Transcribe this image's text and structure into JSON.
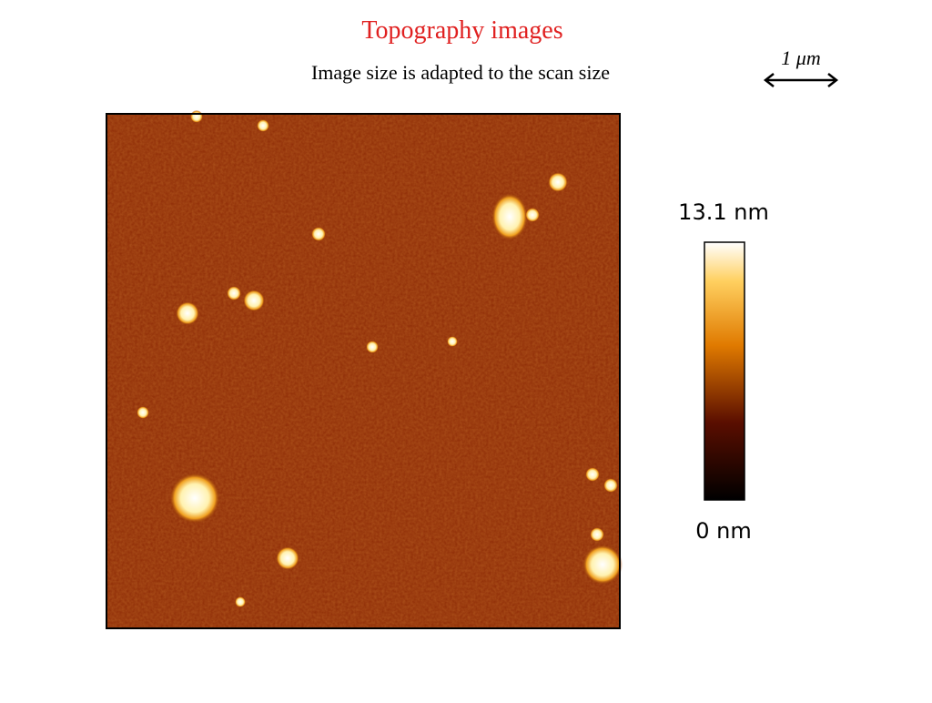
{
  "header": {
    "title": "Topography images",
    "subtitle": "Image size is adapted to the scan size"
  },
  "scale_bar": {
    "label": "1 μm"
  },
  "colorbar": {
    "max_label": "13.1 nm",
    "min_label": "0 nm"
  }
}
